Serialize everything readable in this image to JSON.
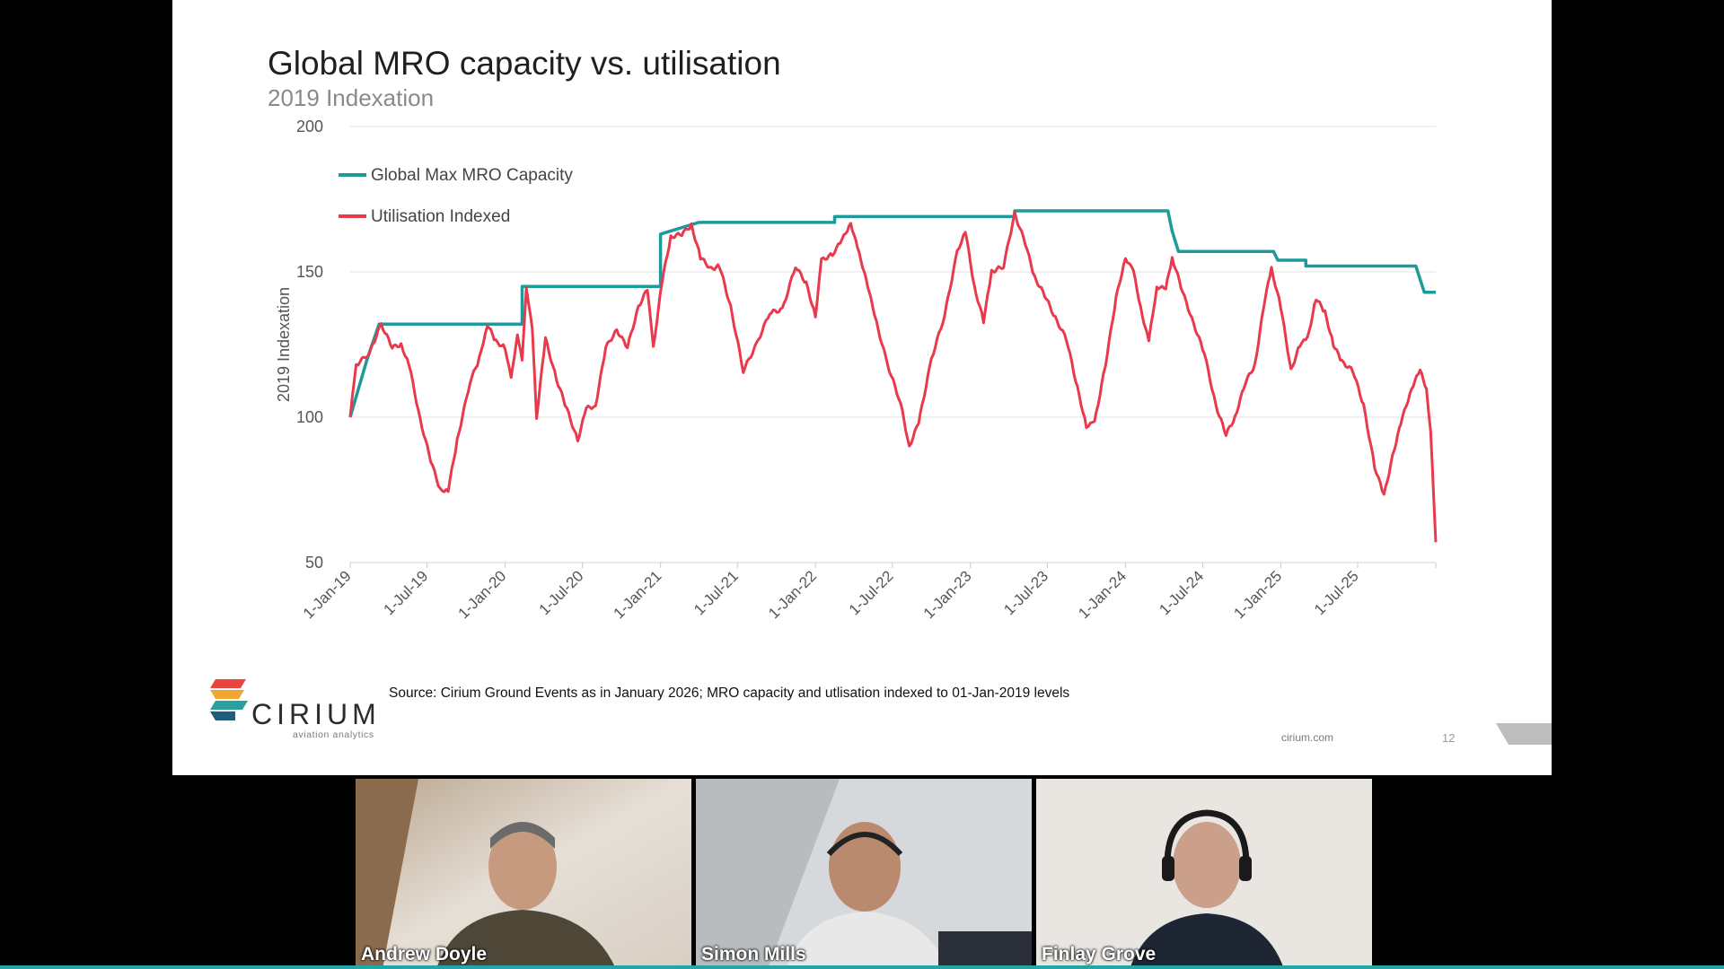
{
  "slide": {
    "title": "Global MRO capacity vs. utilisation",
    "subtitle": "2019 Indexation",
    "source": "Source: Cirium Ground Events as in January 2026; MRO capacity and utlisation indexed to 01-Jan-2019 levels",
    "brand": {
      "name": "CIRIUM",
      "tagline": "aviation analytics",
      "colors": [
        "#e8453c",
        "#f2a632",
        "#2a9fa0",
        "#1d5f7a"
      ]
    },
    "footer_url": "cirium.com",
    "page_number": "12"
  },
  "chart_data": {
    "type": "line",
    "ylabel": "2019 Indexation",
    "y_ticks": [
      "200",
      "150",
      "100",
      "50"
    ],
    "ylim": [
      50,
      200
    ],
    "x_ticks": [
      "1-Jan-19",
      "1-Jul-19",
      "1-Jan-20",
      "1-Jul-20",
      "1-Jan-21",
      "1-Jul-21",
      "1-Jan-22",
      "1-Jul-22",
      "1-Jan-23",
      "1-Jul-23",
      "1-Jan-24",
      "1-Jul-24",
      "1-Jan-25",
      "1-Jul-25"
    ],
    "x_range": [
      "2019-01-01",
      "2026-01-01"
    ],
    "grid": "horizontal",
    "legend_position": "top-left",
    "series": [
      {
        "name": "Global Max MRO Capacity",
        "color": "#1e9a9b",
        "step": true,
        "points": [
          [
            "2019-01-01",
            100
          ],
          [
            "2019-02-10",
            120
          ],
          [
            "2019-03-10",
            132
          ],
          [
            "2020-02-10",
            132
          ],
          [
            "2020-02-10",
            145
          ],
          [
            "2021-01-01",
            145
          ],
          [
            "2021-01-01",
            163
          ],
          [
            "2021-04-01",
            167
          ],
          [
            "2022-02-15",
            167
          ],
          [
            "2022-02-15",
            169
          ],
          [
            "2023-04-15",
            169
          ],
          [
            "2023-04-15",
            171
          ],
          [
            "2024-04-10",
            171
          ],
          [
            "2024-04-20",
            164
          ],
          [
            "2024-05-05",
            157
          ],
          [
            "2024-12-15",
            157
          ],
          [
            "2024-12-25",
            154
          ],
          [
            "2025-03-01",
            154
          ],
          [
            "2025-03-01",
            152
          ],
          [
            "2025-11-15",
            152
          ],
          [
            "2025-12-05",
            143
          ],
          [
            "2026-01-01",
            143
          ]
        ]
      },
      {
        "name": "Utilisation Indexed",
        "color": "#e8394d",
        "points": [
          [
            "2019-01-01",
            100
          ],
          [
            "2019-01-15",
            118
          ],
          [
            "2019-02-15",
            122
          ],
          [
            "2019-03-15",
            132
          ],
          [
            "2019-04-10",
            124
          ],
          [
            "2019-05-01",
            125
          ],
          [
            "2019-05-20",
            118
          ],
          [
            "2019-06-15",
            99
          ],
          [
            "2019-07-10",
            85
          ],
          [
            "2019-08-01",
            75
          ],
          [
            "2019-08-20",
            75
          ],
          [
            "2019-09-10",
            92
          ],
          [
            "2019-10-10",
            112
          ],
          [
            "2019-11-01",
            120
          ],
          [
            "2019-11-20",
            132
          ],
          [
            "2019-12-10",
            126
          ],
          [
            "2020-01-01",
            124
          ],
          [
            "2020-01-15",
            113
          ],
          [
            "2020-01-30",
            129
          ],
          [
            "2020-02-10",
            119
          ],
          [
            "2020-02-20",
            145
          ],
          [
            "2020-03-05",
            130
          ],
          [
            "2020-03-15",
            100
          ],
          [
            "2020-04-05",
            127
          ],
          [
            "2020-05-01",
            113
          ],
          [
            "2020-05-25",
            103
          ],
          [
            "2020-06-20",
            92
          ],
          [
            "2020-07-10",
            103
          ],
          [
            "2020-08-01",
            104
          ],
          [
            "2020-08-25",
            124
          ],
          [
            "2020-09-20",
            130
          ],
          [
            "2020-10-15",
            124
          ],
          [
            "2020-11-10",
            138
          ],
          [
            "2020-12-01",
            144
          ],
          [
            "2020-12-15",
            124
          ],
          [
            "2021-01-05",
            147
          ],
          [
            "2021-01-25",
            162
          ],
          [
            "2021-02-20",
            163
          ],
          [
            "2021-03-15",
            166
          ],
          [
            "2021-04-05",
            155
          ],
          [
            "2021-04-30",
            151
          ],
          [
            "2021-05-20",
            152
          ],
          [
            "2021-06-15",
            138
          ],
          [
            "2021-07-15",
            116
          ],
          [
            "2021-08-15",
            125
          ],
          [
            "2021-09-15",
            136
          ],
          [
            "2021-10-15",
            137
          ],
          [
            "2021-11-15",
            152
          ],
          [
            "2021-12-10",
            146
          ],
          [
            "2022-01-01",
            135
          ],
          [
            "2022-01-15",
            154
          ],
          [
            "2022-02-10",
            156
          ],
          [
            "2022-03-05",
            161
          ],
          [
            "2022-03-25",
            167
          ],
          [
            "2022-04-10",
            158
          ],
          [
            "2022-04-30",
            148
          ],
          [
            "2022-05-20",
            135
          ],
          [
            "2022-06-20",
            118
          ],
          [
            "2022-07-20",
            105
          ],
          [
            "2022-08-10",
            90
          ],
          [
            "2022-09-01",
            98
          ],
          [
            "2022-10-01",
            120
          ],
          [
            "2022-11-01",
            135
          ],
          [
            "2022-12-01",
            157
          ],
          [
            "2022-12-20",
            164
          ],
          [
            "2023-01-10",
            145
          ],
          [
            "2023-02-01",
            133
          ],
          [
            "2023-02-20",
            150
          ],
          [
            "2023-03-20",
            152
          ],
          [
            "2023-04-15",
            170
          ],
          [
            "2023-05-10",
            160
          ],
          [
            "2023-06-01",
            148
          ],
          [
            "2023-06-25",
            142
          ],
          [
            "2023-07-20",
            134
          ],
          [
            "2023-08-15",
            127
          ],
          [
            "2023-09-10",
            110
          ],
          [
            "2023-10-01",
            97
          ],
          [
            "2023-10-20",
            98
          ],
          [
            "2023-11-15",
            118
          ],
          [
            "2023-12-10",
            141
          ],
          [
            "2024-01-01",
            155
          ],
          [
            "2024-01-20",
            150
          ],
          [
            "2024-02-10",
            135
          ],
          [
            "2024-02-25",
            126
          ],
          [
            "2024-03-15",
            145
          ],
          [
            "2024-04-05",
            144
          ],
          [
            "2024-04-20",
            155
          ],
          [
            "2024-05-15",
            143
          ],
          [
            "2024-06-10",
            132
          ],
          [
            "2024-07-05",
            122
          ],
          [
            "2024-08-01",
            104
          ],
          [
            "2024-08-25",
            94
          ],
          [
            "2024-09-15",
            100
          ],
          [
            "2024-10-10",
            112
          ],
          [
            "2024-11-01",
            118
          ],
          [
            "2024-11-25",
            141
          ],
          [
            "2024-12-10",
            151
          ],
          [
            "2025-01-01",
            138
          ],
          [
            "2025-01-25",
            116
          ],
          [
            "2025-02-15",
            125
          ],
          [
            "2025-03-05",
            127
          ],
          [
            "2025-03-25",
            141
          ],
          [
            "2025-04-15",
            136
          ],
          [
            "2025-05-05",
            125
          ],
          [
            "2025-05-25",
            119
          ],
          [
            "2025-06-20",
            116
          ],
          [
            "2025-07-15",
            104
          ],
          [
            "2025-08-10",
            83
          ],
          [
            "2025-09-01",
            73
          ],
          [
            "2025-09-25",
            89
          ],
          [
            "2025-10-15",
            100
          ],
          [
            "2025-11-05",
            110
          ],
          [
            "2025-11-25",
            116
          ],
          [
            "2025-12-10",
            110
          ],
          [
            "2025-12-20",
            95
          ],
          [
            "2026-01-01",
            57
          ]
        ]
      }
    ]
  },
  "participants": [
    {
      "name": "Andrew Doyle",
      "active": false
    },
    {
      "name": "Simon Mills",
      "active": false
    },
    {
      "name": "Finlay Grove",
      "active": true
    }
  ]
}
